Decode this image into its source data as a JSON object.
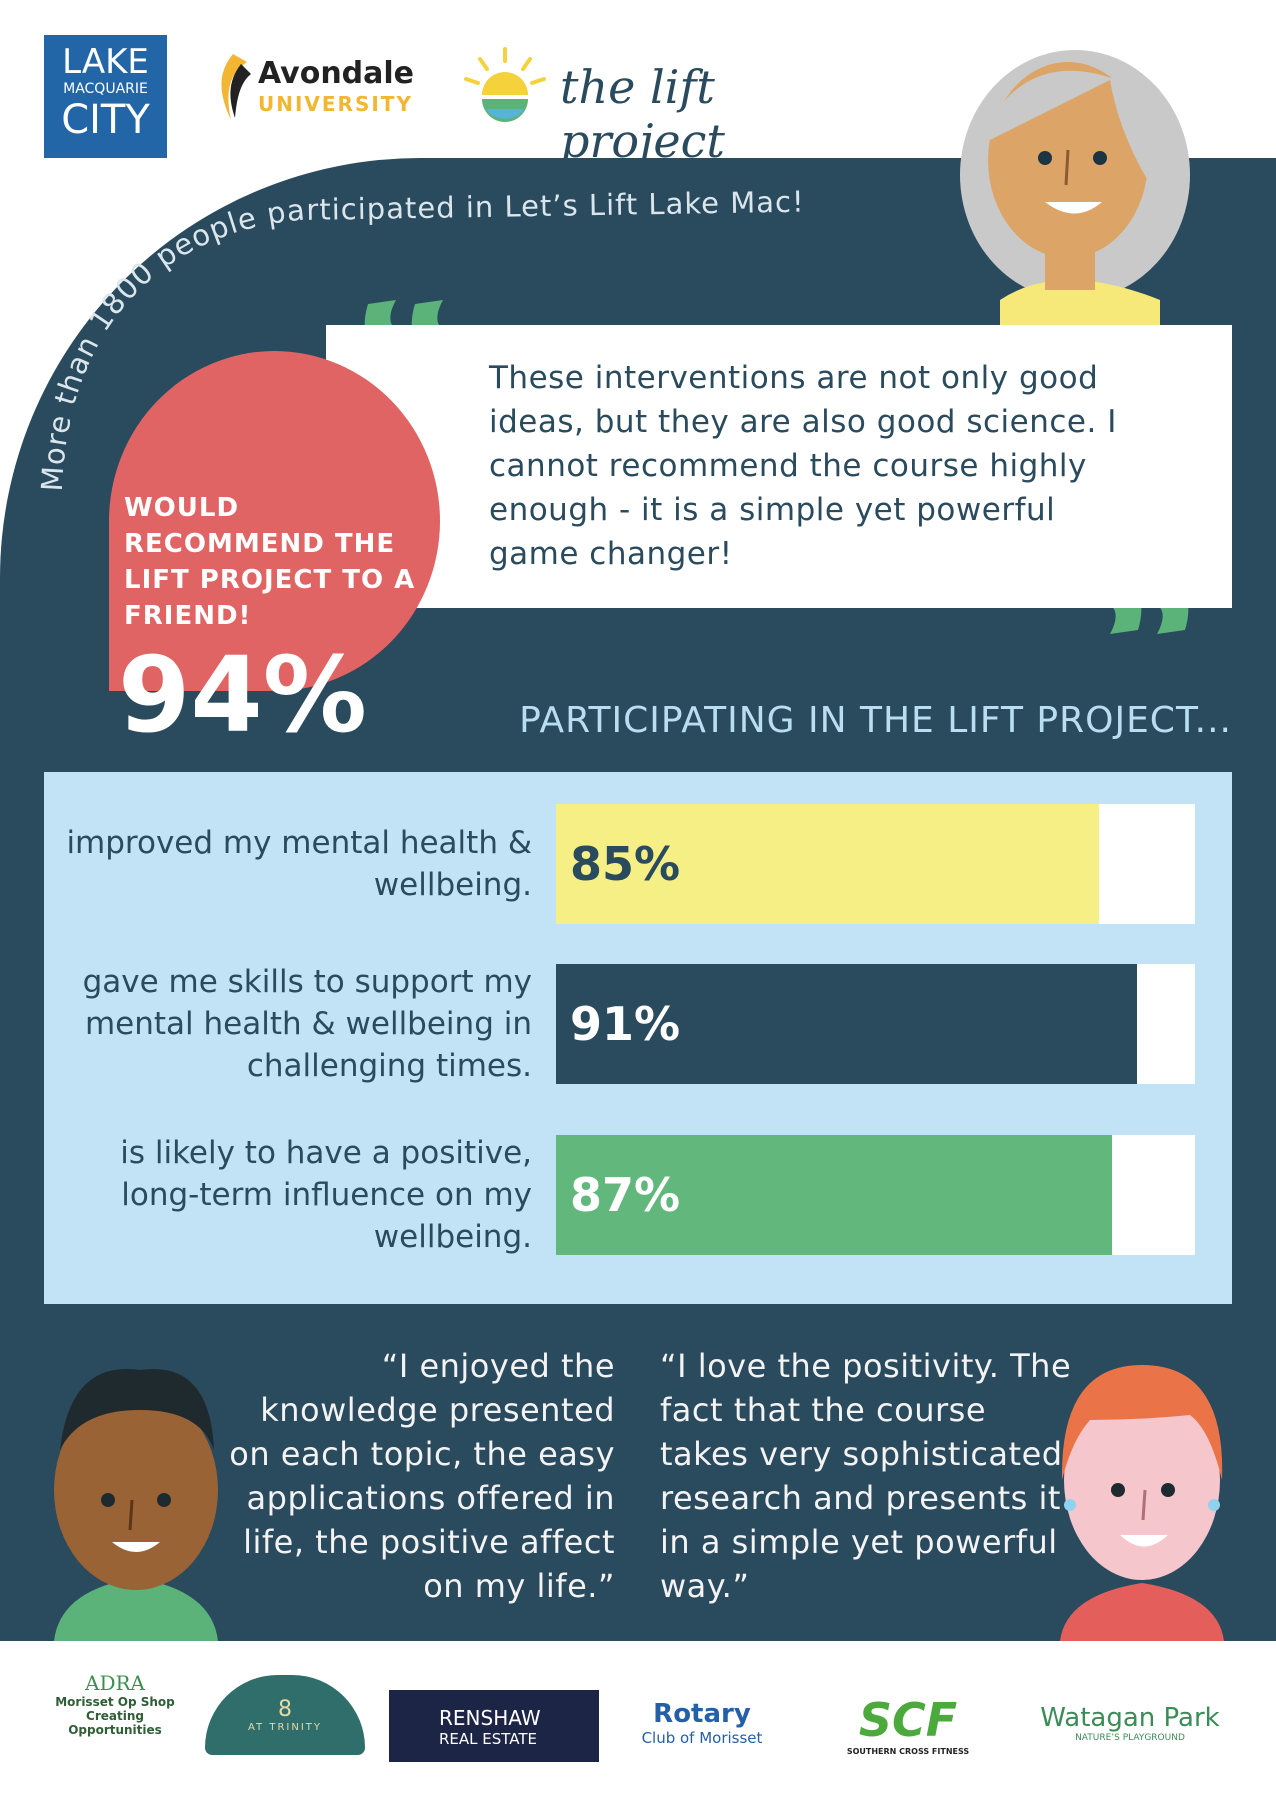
{
  "header": {
    "logos": {
      "council": [
        "LAKE",
        "MACQUARIE",
        "CITY"
      ],
      "university": [
        "Avondale",
        "UNIVERSITY"
      ],
      "project": "the lift project"
    }
  },
  "banner": "More than 1800 people participated in Let’s Lift Lake Mac!",
  "stat": {
    "text": "WOULD RECOMMEND THE LIFT PROJECT TO A FRIEND!",
    "value": "94%"
  },
  "quote": "These interventions are not only good ideas, but they are also good science. I cannot recommend the course highly enough - it is a simple yet powerful game changer!",
  "chart_data": {
    "type": "bar",
    "title": "PARTICIPATING IN THE LIFT PROJECT...",
    "categories": [
      "improved my mental health & wellbeing.",
      "gave me skills to support my mental health & wellbeing in challenging times.",
      "is likely to have a positive, long-term influence on my wellbeing."
    ],
    "values": [
      85,
      91,
      87
    ],
    "value_labels": [
      "85%",
      "91%",
      "87%"
    ],
    "colors": [
      "#f5ef86",
      "#2a4a5e",
      "#61b77c"
    ],
    "label_colors": [
      "#2a4a5e",
      "#ffffff",
      "#ffffff"
    ],
    "xlim": [
      0,
      100
    ]
  },
  "testimonials": [
    "“I enjoyed the knowledge presented on each topic, the easy applications offered in life, the positive affect on my life.”",
    "“I love the positivity. The fact that the course takes very sophisticated research and presents it in a simple yet powerful way.”"
  ],
  "sponsors": {
    "adra": [
      "ADRA",
      "Morisset Op Shop",
      "Creating Opportunities"
    ],
    "trinity": [
      "8",
      "AT TRINITY"
    ],
    "renshaw": [
      "RENSHAW",
      "REAL ESTATE"
    ],
    "rotary": [
      "Rotary",
      "Club of Morisset"
    ],
    "scf": [
      "SCF",
      "SOUTHERN CROSS FITNESS"
    ],
    "watagan": [
      "Watagan Park",
      "NATURE’S PLAYGROUND"
    ]
  }
}
